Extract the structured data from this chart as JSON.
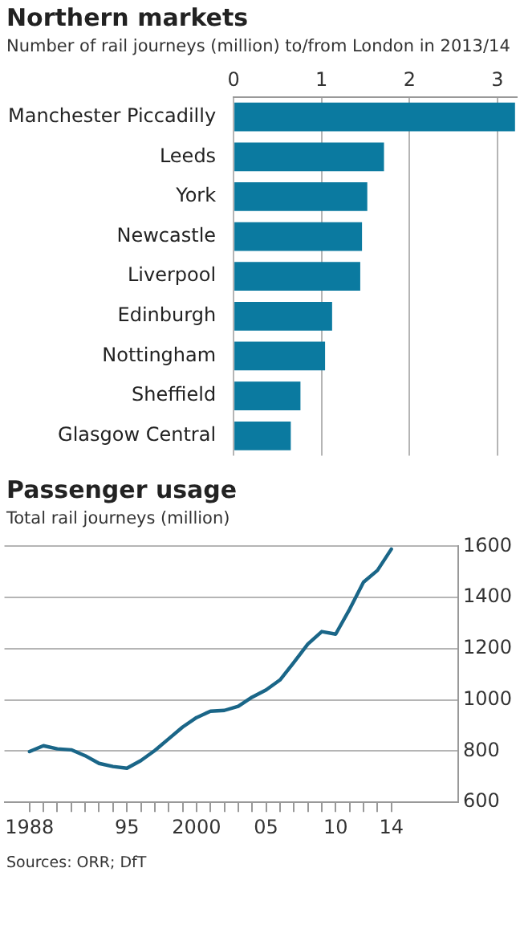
{
  "chart_data": [
    {
      "type": "bar",
      "orientation": "horizontal",
      "title": "Northern markets",
      "subtitle": "Number of rail journeys (million) to/from London in 2013/14",
      "categories": [
        "Manchester Piccadilly",
        "Leeds",
        "York",
        "Newcastle",
        "Liverpool",
        "Edinburgh",
        "Nottingham",
        "Sheffield",
        "Glasgow Central"
      ],
      "values": [
        3.2,
        1.71,
        1.52,
        1.46,
        1.44,
        1.12,
        1.04,
        0.76,
        0.65
      ],
      "color": "#0b7aa0",
      "xlim": [
        0,
        3.22
      ],
      "xticks": [
        0,
        1,
        2,
        3
      ],
      "grid": "x",
      "legend": false
    },
    {
      "type": "line",
      "title": "Passenger usage",
      "subtitle": "Total rail journeys (million)",
      "x": [
        1988,
        1989,
        1990,
        1991,
        1992,
        1993,
        1994,
        1995,
        1996,
        1997,
        1998,
        1999,
        2000,
        2001,
        2002,
        2003,
        2004,
        2005,
        2006,
        2007,
        2008,
        2009,
        2010,
        2011,
        2012,
        2013,
        2014
      ],
      "series": [
        {
          "color": "#1a6688",
          "values": [
            798,
            821,
            809,
            805,
            782,
            752,
            740,
            733,
            763,
            802,
            848,
            894,
            931,
            956,
            959,
            975,
            1011,
            1039,
            1078,
            1147,
            1218,
            1267,
            1257,
            1354,
            1460,
            1506,
            1589
          ]
        }
      ],
      "xlim": [
        1986.2,
        2018.8
      ],
      "xticks": [
        {
          "value": 1988,
          "label": "1988"
        },
        {
          "value": 1989,
          "label": null
        },
        {
          "value": 1990,
          "label": null
        },
        {
          "value": 1991,
          "label": null
        },
        {
          "value": 1992,
          "label": null
        },
        {
          "value": 1993,
          "label": null
        },
        {
          "value": 1994,
          "label": null
        },
        {
          "value": 1995,
          "label": "95"
        },
        {
          "value": 1996,
          "label": null
        },
        {
          "value": 1997,
          "label": null
        },
        {
          "value": 1998,
          "label": null
        },
        {
          "value": 1999,
          "label": null
        },
        {
          "value": 2000,
          "label": "2000"
        },
        {
          "value": 2001,
          "label": null
        },
        {
          "value": 2002,
          "label": null
        },
        {
          "value": 2003,
          "label": null
        },
        {
          "value": 2004,
          "label": null
        },
        {
          "value": 2005,
          "label": "05"
        },
        {
          "value": 2006,
          "label": null
        },
        {
          "value": 2007,
          "label": null
        },
        {
          "value": 2008,
          "label": null
        },
        {
          "value": 2009,
          "label": null
        },
        {
          "value": 2010,
          "label": "10"
        },
        {
          "value": 2011,
          "label": null
        },
        {
          "value": 2012,
          "label": null
        },
        {
          "value": 2013,
          "label": null
        },
        {
          "value": 2014,
          "label": "14"
        }
      ],
      "ylim": [
        600,
        1600
      ],
      "yticks": [
        600,
        800,
        1000,
        1200,
        1400,
        1600
      ],
      "grid": "y",
      "legend": false,
      "marker": "none",
      "line_style": "solid",
      "annotations": [
        "Sources: ORR; DfT"
      ]
    }
  ]
}
